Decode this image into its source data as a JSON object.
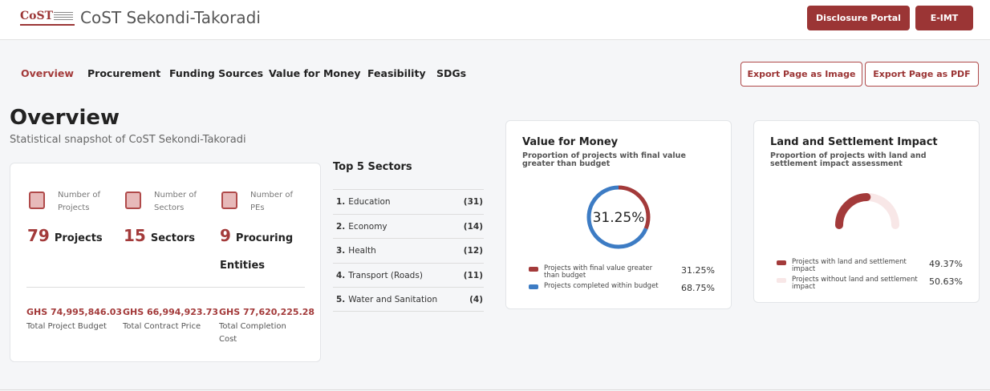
{
  "header": {
    "logo": "CoST",
    "title": "CoST Sekondi-Takoradi",
    "buttons": [
      "Disclosure Portal",
      "E-IMT"
    ]
  },
  "nav": {
    "tabs": [
      "Overview",
      "Procurement",
      "Funding Sources",
      "Value for Money",
      "Feasibility",
      "SDGs"
    ],
    "active_tab": 0,
    "exports": [
      "Export Page as Image",
      "Export Page as PDF"
    ]
  },
  "overview": {
    "title": "Overview",
    "subtitle": "Statistical snapshot of CoST Sekondi-Takoradi"
  },
  "stats": [
    {
      "label": "Number of Projects",
      "value": "79",
      "unit": "Projects"
    },
    {
      "label": "Number of Sectors",
      "value": "15",
      "unit": "Sectors"
    },
    {
      "label": "Number of PEs",
      "value": "9",
      "unit": "Procuring Entities"
    }
  ],
  "totals": [
    {
      "amount": "GHS 74,995,846.03",
      "label": "Total Project Budget"
    },
    {
      "amount": "GHS 66,994,923.73",
      "label": "Total Contract Price"
    },
    {
      "amount": "GHS 77,620,225.28",
      "label": "Total Completion Cost"
    }
  ],
  "top_sectors": {
    "title": "Top 5 Sectors",
    "rows": [
      {
        "rank": "1.",
        "name": "Education",
        "count": "(31)"
      },
      {
        "rank": "2.",
        "name": "Economy",
        "count": "(14)"
      },
      {
        "rank": "3.",
        "name": "Health",
        "count": "(12)"
      },
      {
        "rank": "4.",
        "name": "Transport (Roads)",
        "count": "(11)"
      },
      {
        "rank": "5.",
        "name": "Water and Sanitation",
        "count": "(4)"
      }
    ]
  },
  "value_for_money": {
    "title": "Value for Money",
    "subtitle": "Proportion of projects with final value greater than budget",
    "chart": {
      "type": "donut",
      "series": [
        {
          "name": "Projects with final value greater than budget",
          "color": "#a33a3a",
          "value": 31.25,
          "value_label": "31.25%"
        },
        {
          "name": "Projects completed within budget",
          "color": "#3d7cc4",
          "value": 68.75,
          "value_label": "68.75%"
        }
      ]
    }
  },
  "land_impact": {
    "title": "Land and Settlement Impact",
    "subtitle": "Proportion of projects with land and settlement impact assessment",
    "chart": {
      "type": "gauge",
      "series": [
        {
          "name": "Projects with land and settlement impact",
          "color": "#a33a3a",
          "value": 49.37,
          "value_label": "49.37%"
        },
        {
          "name": "Projects without land and settlement impact",
          "color": "#f8e7e7",
          "value": 50.63,
          "value_label": "50.63%"
        }
      ]
    }
  }
}
